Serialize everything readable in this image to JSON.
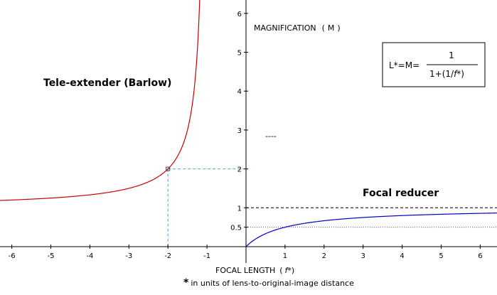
{
  "chart_data": {
    "type": "line",
    "title": "",
    "xlabel": "FOCAL LENGTH",
    "xlabel_var": "f*",
    "ylabel": "MAGNIFICATION",
    "ylabel_var": "M",
    "xlim": [
      -6.35,
      6.45
    ],
    "ylim": [
      -0.1,
      6.3
    ],
    "x_ticks": [
      -6,
      -5,
      -4,
      -3,
      -2,
      -1,
      1,
      2,
      3,
      4,
      5,
      6
    ],
    "y_ticks": [
      0.5,
      1,
      2,
      3,
      4,
      5,
      6
    ],
    "grid": false,
    "function": "M = 1 / (1 + 1/f*)",
    "series": [
      {
        "name": "Tele-extender (Barlow)",
        "color": "#cc0000",
        "x_start": -6.35,
        "x_end": -1.18
      },
      {
        "name": "Focal reducer",
        "color": "#0000cc",
        "x_start": 0,
        "x_end": 6.45
      }
    ],
    "highlight_point": {
      "x": -2,
      "y": 2
    },
    "guide_lines": [
      {
        "type": "horizontal",
        "y": 1,
        "style": "dashed",
        "color": "#000000"
      },
      {
        "type": "horizontal",
        "y": 0.5,
        "style": "dotted",
        "color": "#555555"
      },
      {
        "type": "marker-to-axes",
        "x": -2,
        "y": 2,
        "style": "dashed",
        "color": "#5aa0c8"
      }
    ],
    "annotations": {
      "tele": "Tele-extender (Barlow)",
      "reducer": "Focal reducer",
      "formula_left": "L*=M=",
      "formula_num": "1",
      "formula_den_pre": "1+(1/",
      "formula_den_var": "f",
      "formula_den_post": "*)",
      "stray_mark": "----",
      "footnote_star": "*",
      "footnote_text": "in units of lens-to-original-image distance"
    }
  }
}
